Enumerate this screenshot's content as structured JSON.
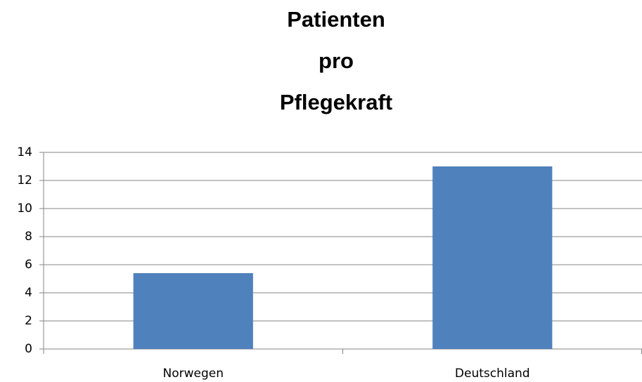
{
  "chart_data": {
    "type": "bar",
    "title": [
      "Patienten",
      "pro",
      "Pflegekraft"
    ],
    "categories": [
      "Norwegen",
      "Deutschland"
    ],
    "values": [
      5.4,
      13
    ],
    "color": "#4f81bd",
    "ylim": [
      0,
      14
    ],
    "yticks": [
      0,
      2,
      4,
      6,
      8,
      10,
      12,
      14
    ],
    "grid": true
  }
}
